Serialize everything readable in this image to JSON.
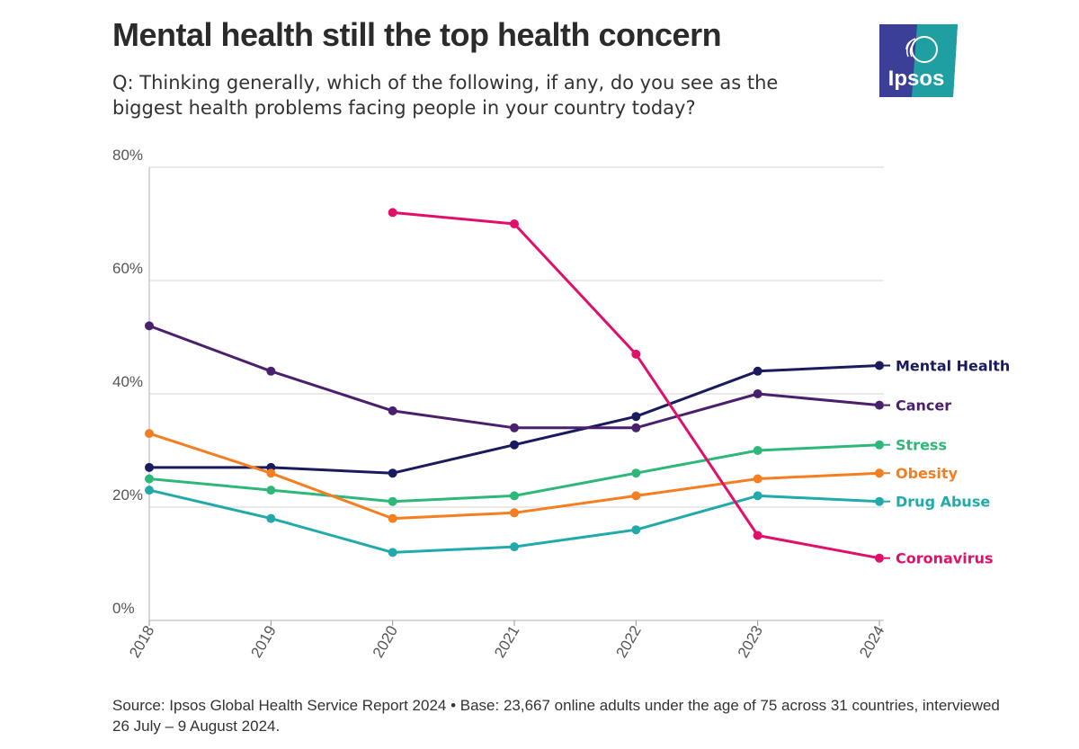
{
  "title": "Mental health still the top health concern",
  "subtitle": "Q: Thinking generally, which of the following, if any, do you see as the biggest health problems facing people in your country today?",
  "source": "Source: Ipsos Global Health Service Report 2024 • Base: 23,667 online adults under the age of 75 across 31 countries, interviewed 26 July – 9 August 2024.",
  "logo": {
    "text": "Ipsos",
    "bg_color": "#3c3f97",
    "accent_color": "#1bb0a5"
  },
  "chart_data": {
    "type": "line",
    "title": "Mental health still the top health concern",
    "xlabel": "",
    "ylabel": "",
    "categories": [
      "2018",
      "2019",
      "2020",
      "2021",
      "2022",
      "2023",
      "2024"
    ],
    "ylim": [
      0,
      80
    ],
    "yticks": [
      0,
      20,
      40,
      60,
      80
    ],
    "ytick_labels": [
      "0%",
      "20%",
      "40%",
      "60%",
      "80%"
    ],
    "grid": true,
    "legend": "inline-right",
    "series": [
      {
        "name": "Mental Health",
        "color": "#1a1a5e",
        "values": [
          27,
          27,
          26,
          31,
          36,
          44,
          45
        ]
      },
      {
        "name": "Cancer",
        "color": "#4a1f6e",
        "values": [
          52,
          44,
          37,
          34,
          34,
          40,
          38
        ]
      },
      {
        "name": "Stress",
        "color": "#2db87a",
        "values": [
          25,
          23,
          21,
          22,
          26,
          30,
          31
        ]
      },
      {
        "name": "Obesity",
        "color": "#f57e20",
        "values": [
          33,
          26,
          18,
          19,
          22,
          25,
          26
        ]
      },
      {
        "name": "Drug Abuse",
        "color": "#22aaaa",
        "values": [
          23,
          18,
          12,
          13,
          16,
          22,
          21
        ]
      },
      {
        "name": "Coronavirus",
        "color": "#e0106a",
        "values": [
          null,
          null,
          72,
          70,
          47,
          15,
          11
        ]
      }
    ]
  }
}
